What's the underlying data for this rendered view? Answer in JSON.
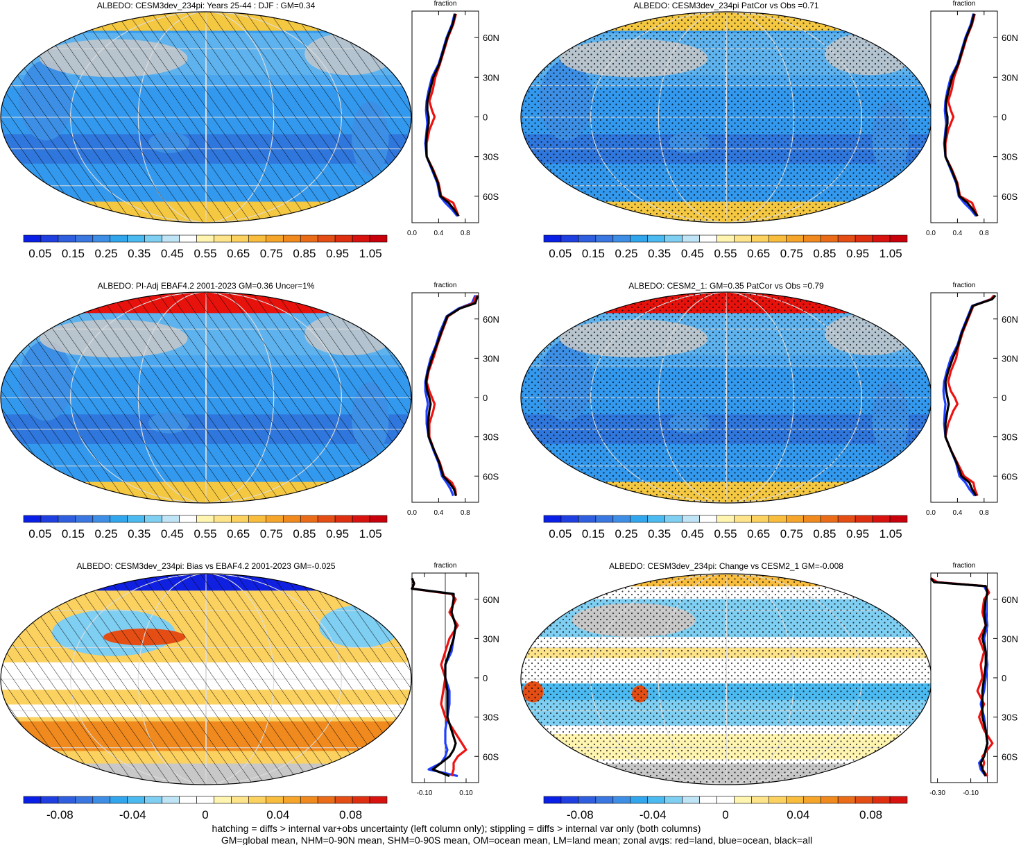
{
  "figure": {
    "colors": {
      "ocean": "#3399ee",
      "ocean_deep": "#2f77dd",
      "ice": "#f5c842",
      "seaice_red": "#e8120d",
      "land_mask": "#c8c8c8",
      "line_land": "#ee1111",
      "line_ocean": "#1f3fff",
      "line_all": "#000000"
    },
    "footer": [
      "hatching = diffs > internal var+obs uncertainty (left column only); stippling = diffs > internal var only (both columns)",
      "GM=global mean, NHM=0-90N mean, SHM=0-90S mean, OM=ocean mean, LM=land mean; zonal avgs: red=land, blue=ocean, black=all"
    ]
  },
  "colorbars": {
    "absolute": {
      "labels": [
        "0.05",
        "0.15",
        "0.25",
        "0.35",
        "0.45",
        "0.55",
        "0.65",
        "0.75",
        "0.85",
        "0.95",
        "1.05"
      ],
      "colors": [
        "#0a1fe6",
        "#1f3fe0",
        "#2f5ede",
        "#3a77e0",
        "#3f8ee6",
        "#32a6ec",
        "#4bbaf0",
        "#7fcff3",
        "#bfe4f6",
        "#ffffff",
        "#fff5b0",
        "#fde48a",
        "#fbd160",
        "#f9bd3e",
        "#f6a52b",
        "#f08a1e",
        "#ea6c18",
        "#e44e14",
        "#de2f10",
        "#d8120e",
        "#c8000c"
      ]
    },
    "difference": {
      "labels": [
        "-0.08",
        "-0.04",
        "0",
        "0.04",
        "0.08"
      ],
      "colors": [
        "#0a1fe6",
        "#1f3fe0",
        "#2f5ede",
        "#3a77e0",
        "#3f8ee6",
        "#32a6ec",
        "#4bbaf0",
        "#7fcff3",
        "#bfe4f6",
        "#ffffff",
        "#ffffff",
        "#fff5b0",
        "#fde48a",
        "#fbd160",
        "#f9bd3e",
        "#f6a52b",
        "#f08a1e",
        "#ea6c18",
        "#e44e14",
        "#de2f10",
        "#d8120e"
      ]
    }
  },
  "panels": [
    {
      "title": "ALBEDO: CESM3dev_234pi: Years 25-44 : DJF : GM=0.34",
      "overlay": "hatch",
      "kind": "abs",
      "colorbar": "absolute"
    },
    {
      "title": "ALBEDO: CESM3dev_234pi PatCor vs Obs =0.71",
      "overlay": "stipple",
      "kind": "abs",
      "colorbar": "absolute"
    },
    {
      "title": "ALBEDO: PI-Adj EBAF4.2 2001-2023 GM=0.36 Uncer=1%",
      "overlay": "hatch",
      "kind": "obs",
      "colorbar": "absolute"
    },
    {
      "title": "ALBEDO: CESM2_1: GM=0.35 PatCor vs Obs =0.79",
      "overlay": "stipple",
      "kind": "obs",
      "colorbar": "absolute"
    },
    {
      "title": "ALBEDO: CESM3dev_234pi: Bias vs EBAF4.2 2001-2023 GM=-0.025",
      "overlay": "hatch",
      "kind": "bias",
      "colorbar": "difference"
    },
    {
      "title": "ALBEDO: CESM3dev_234pi: Change vs CESM2_1 GM=-0.008",
      "overlay": "stipple",
      "kind": "change",
      "colorbar": "difference"
    }
  ],
  "chart_data": [
    {
      "type": "line",
      "panel": "CESM3dev_234pi zonal mean",
      "top_label": "fraction",
      "xlim": [
        0,
        1
      ],
      "ylim": [
        -80,
        80
      ],
      "x_ticks": [
        "0.0",
        "0.4",
        "0.8"
      ],
      "x_tick_values": [
        0,
        0.4,
        0.8
      ],
      "y_ticks": [
        "60N",
        "30N",
        "0",
        "30S",
        "60S"
      ],
      "y_tick_values": [
        60,
        30,
        0,
        -30,
        -60
      ],
      "y": [
        78,
        70,
        60,
        50,
        40,
        30,
        20,
        12,
        5,
        0,
        -5,
        -10,
        -20,
        -30,
        -40,
        -50,
        -60,
        -65,
        -70,
        -75
      ],
      "series": [
        {
          "color": "#1f3fff",
          "x": [
            0.64,
            0.6,
            0.52,
            0.46,
            0.4,
            0.3,
            0.25,
            0.22,
            0.21,
            0.22,
            0.23,
            0.22,
            0.2,
            0.22,
            0.3,
            0.38,
            0.42,
            0.5,
            0.6,
            0.68
          ]
        },
        {
          "color": "#ee1111",
          "x": [
            0.66,
            0.62,
            0.54,
            0.48,
            0.42,
            0.35,
            0.31,
            0.26,
            0.3,
            0.34,
            0.3,
            0.26,
            0.22,
            0.22,
            0.32,
            0.4,
            0.44,
            0.62,
            0.66,
            0.7
          ]
        },
        {
          "color": "#000000",
          "x": [
            0.65,
            0.61,
            0.53,
            0.47,
            0.41,
            0.32,
            0.27,
            0.23,
            0.23,
            0.25,
            0.25,
            0.23,
            0.21,
            0.22,
            0.31,
            0.39,
            0.43,
            0.55,
            0.63,
            0.7
          ]
        }
      ]
    },
    {
      "type": "line",
      "panel": "CESM3dev_234pi PatCor zonal mean",
      "top_label": "fraction",
      "xlim": [
        0,
        1
      ],
      "ylim": [
        -80,
        80
      ],
      "x_ticks": [
        "0.0",
        "0.4",
        "0.8"
      ],
      "x_tick_values": [
        0,
        0.4,
        0.8
      ],
      "y_ticks": [
        "60N",
        "30N",
        "0",
        "30S",
        "60S"
      ],
      "y_tick_values": [
        60,
        30,
        0,
        -30,
        -60
      ],
      "y": [
        78,
        70,
        60,
        50,
        40,
        30,
        20,
        12,
        5,
        0,
        -5,
        -10,
        -20,
        -30,
        -40,
        -50,
        -60,
        -65,
        -70,
        -75
      ],
      "series": [
        {
          "color": "#1f3fff",
          "x": [
            0.64,
            0.6,
            0.52,
            0.46,
            0.4,
            0.3,
            0.25,
            0.22,
            0.21,
            0.22,
            0.23,
            0.22,
            0.2,
            0.22,
            0.3,
            0.38,
            0.42,
            0.5,
            0.6,
            0.68
          ]
        },
        {
          "color": "#ee1111",
          "x": [
            0.66,
            0.62,
            0.54,
            0.48,
            0.42,
            0.35,
            0.31,
            0.26,
            0.3,
            0.34,
            0.3,
            0.26,
            0.22,
            0.22,
            0.32,
            0.4,
            0.44,
            0.62,
            0.66,
            0.7
          ]
        },
        {
          "color": "#000000",
          "x": [
            0.65,
            0.61,
            0.53,
            0.47,
            0.41,
            0.32,
            0.27,
            0.23,
            0.23,
            0.25,
            0.25,
            0.23,
            0.21,
            0.22,
            0.31,
            0.39,
            0.43,
            0.55,
            0.63,
            0.7
          ]
        }
      ]
    },
    {
      "type": "line",
      "panel": "PI-Adj EBAF4.2 zonal mean",
      "top_label": "fraction",
      "xlim": [
        0,
        1
      ],
      "ylim": [
        -80,
        80
      ],
      "x_ticks": [
        "0.0",
        "0.4",
        "0.8"
      ],
      "x_tick_values": [
        0,
        0.4,
        0.8
      ],
      "y_ticks": [
        "60N",
        "30N",
        "0",
        "30S",
        "60S"
      ],
      "y_tick_values": [
        60,
        30,
        0,
        -30,
        -60
      ],
      "y": [
        78,
        72,
        68,
        62,
        50,
        40,
        30,
        20,
        12,
        5,
        0,
        -5,
        -10,
        -20,
        -30,
        -40,
        -50,
        -60,
        -65,
        -70,
        -75
      ],
      "series": [
        {
          "color": "#1f3fff",
          "x": [
            0.95,
            0.9,
            0.7,
            0.52,
            0.42,
            0.36,
            0.28,
            0.23,
            0.2,
            0.2,
            0.22,
            0.24,
            0.22,
            0.22,
            0.25,
            0.32,
            0.4,
            0.45,
            0.52,
            0.58,
            0.62
          ]
        },
        {
          "color": "#ee1111",
          "x": [
            0.97,
            0.92,
            0.72,
            0.54,
            0.45,
            0.38,
            0.32,
            0.25,
            0.22,
            0.26,
            0.3,
            0.34,
            0.32,
            0.26,
            0.26,
            0.33,
            0.42,
            0.48,
            0.6,
            0.65,
            0.66
          ]
        },
        {
          "color": "#000000",
          "x": [
            0.99,
            0.95,
            0.72,
            0.53,
            0.44,
            0.37,
            0.3,
            0.24,
            0.21,
            0.23,
            0.26,
            0.28,
            0.26,
            0.24,
            0.25,
            0.33,
            0.41,
            0.47,
            0.56,
            0.63,
            0.66
          ]
        }
      ]
    },
    {
      "type": "line",
      "panel": "CESM2_1 zonal mean",
      "top_label": "fraction",
      "xlim": [
        0,
        1
      ],
      "ylim": [
        -80,
        80
      ],
      "x_ticks": [
        "0.0",
        "0.4",
        "0.8"
      ],
      "x_tick_values": [
        0,
        0.4,
        0.8
      ],
      "y_ticks": [
        "60N",
        "30N",
        "0",
        "30S",
        "60S"
      ],
      "y_tick_values": [
        60,
        30,
        0,
        -30,
        -60
      ],
      "y": [
        78,
        75,
        70,
        60,
        50,
        40,
        30,
        20,
        12,
        5,
        0,
        -5,
        -10,
        -20,
        -30,
        -40,
        -50,
        -60,
        -65,
        -70,
        -75
      ],
      "series": [
        {
          "color": "#1f3fff",
          "x": [
            0.95,
            0.9,
            0.62,
            0.54,
            0.46,
            0.4,
            0.3,
            0.24,
            0.2,
            0.19,
            0.2,
            0.22,
            0.21,
            0.2,
            0.22,
            0.3,
            0.38,
            0.43,
            0.52,
            0.58,
            0.66
          ]
        },
        {
          "color": "#ee1111",
          "x": [
            0.95,
            0.9,
            0.64,
            0.56,
            0.48,
            0.42,
            0.38,
            0.3,
            0.26,
            0.3,
            0.36,
            0.4,
            0.34,
            0.26,
            0.22,
            0.3,
            0.4,
            0.5,
            0.64,
            0.66,
            0.7
          ]
        },
        {
          "color": "#000000",
          "x": [
            0.97,
            0.92,
            0.63,
            0.55,
            0.47,
            0.41,
            0.33,
            0.26,
            0.22,
            0.23,
            0.25,
            0.27,
            0.25,
            0.22,
            0.22,
            0.3,
            0.39,
            0.46,
            0.58,
            0.62,
            0.68
          ]
        }
      ]
    },
    {
      "type": "line",
      "panel": "Bias zonal mean",
      "top_label": "fraction",
      "xlim": [
        -0.16,
        0.16
      ],
      "ylim": [
        -80,
        80
      ],
      "x_ticks": [
        "-0.10",
        "0.10"
      ],
      "x_tick_values": [
        -0.1,
        0.1
      ],
      "y_ticks": [
        "60N",
        "30N",
        "0",
        "30S",
        "60S"
      ],
      "y_tick_values": [
        60,
        30,
        0,
        -30,
        -60
      ],
      "y": [
        76,
        72,
        68,
        64,
        60,
        50,
        40,
        30,
        20,
        10,
        0,
        -10,
        -20,
        -30,
        -40,
        -50,
        -55,
        -60,
        -65,
        -70,
        -75
      ],
      "series": [
        {
          "color": "#1f3fff",
          "x": [
            -0.16,
            -0.15,
            -0.16,
            0.04,
            0.04,
            0.03,
            0.05,
            0.04,
            0.03,
            0.0,
            0.0,
            0.02,
            0.02,
            0.01,
            0.0,
            0.0,
            0.01,
            0.0,
            -0.02,
            -0.08,
            0.06
          ]
        },
        {
          "color": "#ee1111",
          "x": [
            -0.16,
            -0.15,
            -0.16,
            0.03,
            0.05,
            0.02,
            0.06,
            0.02,
            0.0,
            -0.02,
            0.0,
            -0.01,
            -0.02,
            0.0,
            0.04,
            0.08,
            0.1,
            0.06,
            0.04,
            0.04,
            0.03
          ]
        },
        {
          "color": "#000000",
          "x": [
            -0.16,
            -0.15,
            -0.16,
            0.04,
            0.04,
            0.03,
            0.05,
            0.04,
            0.02,
            0.0,
            0.0,
            0.01,
            0.01,
            0.01,
            0.03,
            0.05,
            0.04,
            0.02,
            -0.02,
            -0.06,
            0.02
          ]
        }
      ]
    },
    {
      "type": "line",
      "panel": "Change zonal mean",
      "top_label": "fraction",
      "xlim": [
        -0.34,
        0.06
      ],
      "ylim": [
        -80,
        80
      ],
      "x_ticks": [
        "-0.30",
        "-0.10"
      ],
      "x_tick_values": [
        -0.3,
        -0.1
      ],
      "y_ticks": [
        "60N",
        "30N",
        "0",
        "30S",
        "60S"
      ],
      "y_tick_values": [
        60,
        30,
        0,
        -30,
        -60
      ],
      "y": [
        76,
        73,
        70,
        65,
        60,
        50,
        40,
        30,
        20,
        10,
        0,
        -10,
        -20,
        -30,
        -40,
        -50,
        -55,
        -60,
        -65,
        -70,
        -75
      ],
      "series": [
        {
          "color": "#1f3fff",
          "x": [
            -0.34,
            -0.3,
            -0.02,
            0.0,
            -0.01,
            -0.01,
            0.0,
            -0.02,
            -0.01,
            0.0,
            -0.01,
            -0.02,
            -0.04,
            -0.02,
            -0.01,
            0.0,
            -0.01,
            -0.02,
            -0.05,
            -0.04,
            -0.01
          ]
        },
        {
          "color": "#ee1111",
          "x": [
            -0.34,
            -0.3,
            -0.01,
            0.01,
            -0.02,
            -0.03,
            -0.01,
            -0.05,
            -0.02,
            -0.04,
            -0.03,
            -0.06,
            -0.02,
            -0.05,
            -0.02,
            0.03,
            0.0,
            -0.03,
            -0.02,
            -0.03,
            0.0
          ]
        },
        {
          "color": "#000000",
          "x": [
            -0.34,
            -0.32,
            -0.01,
            0.0,
            -0.01,
            -0.02,
            -0.01,
            -0.03,
            -0.01,
            -0.01,
            -0.02,
            -0.03,
            -0.03,
            -0.03,
            -0.01,
            0.0,
            -0.01,
            -0.02,
            -0.04,
            -0.03,
            -0.01
          ]
        }
      ]
    }
  ]
}
